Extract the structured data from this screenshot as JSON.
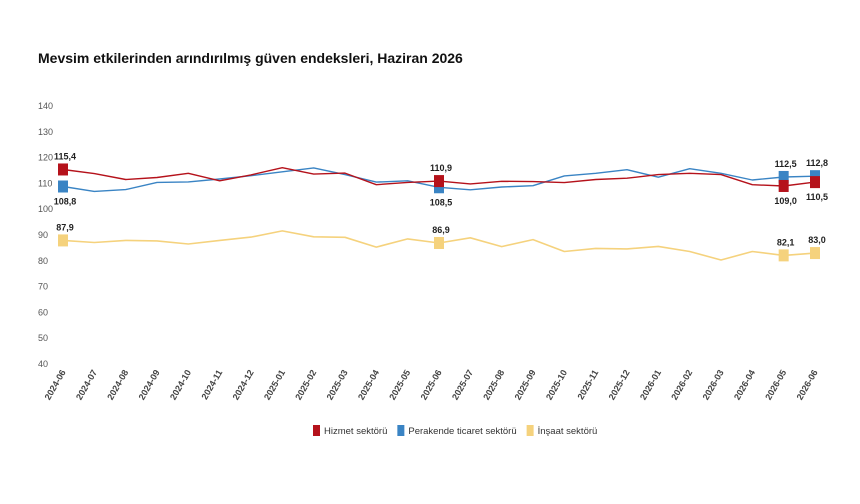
{
  "chart_data": {
    "type": "line",
    "title": "Mevsim etkilerinden arındırılmış güven endeksleri, Haziran 2026",
    "xlabel": "",
    "ylabel": "",
    "ylim": [
      40,
      140
    ],
    "yticks": [
      40,
      50,
      60,
      70,
      80,
      90,
      100,
      110,
      120,
      130,
      140
    ],
    "grid": false,
    "legend_position": "bottom",
    "categories": [
      "2024-06",
      "2024-07",
      "2024-08",
      "2024-09",
      "2024-10",
      "2024-11",
      "2024-12",
      "2025-01",
      "2025-02",
      "2025-03",
      "2025-04",
      "2025-05",
      "2025-06",
      "2025-07",
      "2025-08",
      "2025-09",
      "2025-10",
      "2025-11",
      "2025-12",
      "2026-01",
      "2026-02",
      "2026-03",
      "2026-04",
      "2026-05",
      "2026-06"
    ],
    "series": [
      {
        "name": "Hizmet sektörü",
        "color": "#b5121b",
        "values": [
          115.4,
          113.8,
          111.5,
          112.3,
          113.9,
          111.0,
          113.3,
          116.1,
          113.6,
          114.0,
          109.5,
          110.4,
          110.9,
          109.8,
          110.8,
          110.7,
          110.3,
          111.5,
          112.0,
          113.4,
          113.9,
          113.4,
          109.5,
          109.0,
          110.5
        ],
        "markers": [
          0,
          12,
          23,
          24
        ],
        "labels": {
          "0": "115,4",
          "12": "110,9",
          "23": "109,0",
          "24": "110,5"
        }
      },
      {
        "name": "Perakende ticaret sektörü",
        "color": "#3a84c4",
        "values": [
          108.8,
          106.9,
          107.6,
          110.4,
          110.6,
          111.7,
          113.0,
          114.5,
          116.0,
          113.4,
          110.5,
          111.0,
          108.5,
          107.5,
          108.6,
          109.1,
          112.9,
          113.9,
          115.3,
          112.4,
          115.7,
          113.9,
          111.3,
          112.5,
          112.8
        ],
        "markers": [
          0,
          12,
          23,
          24
        ],
        "labels": {
          "0": "108,8",
          "12": "108,5",
          "23": "112,5",
          "24": "112,8"
        }
      },
      {
        "name": "İnşaat sektörü",
        "color": "#f5d27d",
        "values": [
          87.9,
          87.1,
          87.9,
          87.7,
          86.5,
          87.9,
          89.2,
          91.6,
          89.3,
          89.1,
          85.3,
          88.5,
          86.9,
          88.9,
          85.5,
          88.2,
          83.6,
          84.8,
          84.6,
          85.6,
          83.6,
          80.3,
          83.6,
          82.1,
          83.0
        ],
        "markers": [
          0,
          12,
          23,
          24
        ],
        "labels": {
          "0": "87,9",
          "12": "86,9",
          "23": "82,1",
          "24": "83,0"
        }
      }
    ]
  }
}
